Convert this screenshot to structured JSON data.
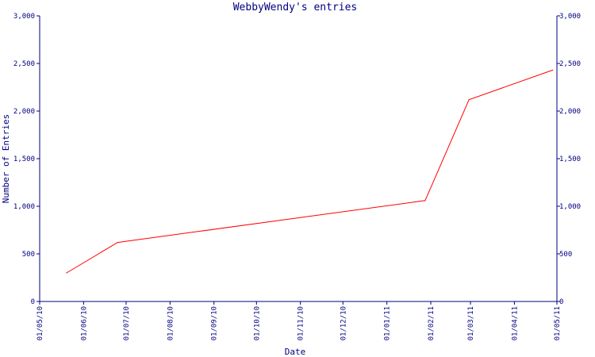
{
  "chart_data": {
    "type": "line",
    "title": "WebbyWendy's entries",
    "xlabel": "Date",
    "ylabel": "Number of Entries",
    "ylim": [
      0,
      3000
    ],
    "xlim": [
      "2010-05-01",
      "2011-05-01"
    ],
    "grid": false,
    "y_ticks": [
      {
        "value": 0,
        "label": "0"
      },
      {
        "value": 500,
        "label": "500"
      },
      {
        "value": 1000,
        "label": "1,000"
      },
      {
        "value": 1500,
        "label": "1,500"
      },
      {
        "value": 2000,
        "label": "2,000"
      },
      {
        "value": 2500,
        "label": "2,500"
      },
      {
        "value": 3000,
        "label": "3,000"
      }
    ],
    "x_ticks": [
      {
        "value": "2010-05-01",
        "label": "01/05/10"
      },
      {
        "value": "2010-06-01",
        "label": "01/06/10"
      },
      {
        "value": "2010-07-01",
        "label": "01/07/10"
      },
      {
        "value": "2010-08-01",
        "label": "01/08/10"
      },
      {
        "value": "2010-09-01",
        "label": "01/09/10"
      },
      {
        "value": "2010-10-01",
        "label": "01/10/10"
      },
      {
        "value": "2010-11-01",
        "label": "01/11/10"
      },
      {
        "value": "2010-12-01",
        "label": "01/12/10"
      },
      {
        "value": "2011-01-01",
        "label": "01/01/11"
      },
      {
        "value": "2011-02-01",
        "label": "01/02/11"
      },
      {
        "value": "2011-03-01",
        "label": "01/03/11"
      },
      {
        "value": "2011-04-01",
        "label": "01/04/11"
      },
      {
        "value": "2011-05-01",
        "label": "01/05/11"
      }
    ],
    "series": [
      {
        "color": "#ff0000",
        "points": [
          {
            "x": "2010-05-20",
            "y": 300
          },
          {
            "x": "2010-06-25",
            "y": 620
          },
          {
            "x": "2011-01-28",
            "y": 1060
          },
          {
            "x": "2011-02-28",
            "y": 2120
          },
          {
            "x": "2011-04-28",
            "y": 2430
          }
        ]
      }
    ],
    "colors": {
      "axis": "#000080",
      "text": "#000080",
      "line": "#ff0000",
      "background": "#ffffff"
    }
  }
}
